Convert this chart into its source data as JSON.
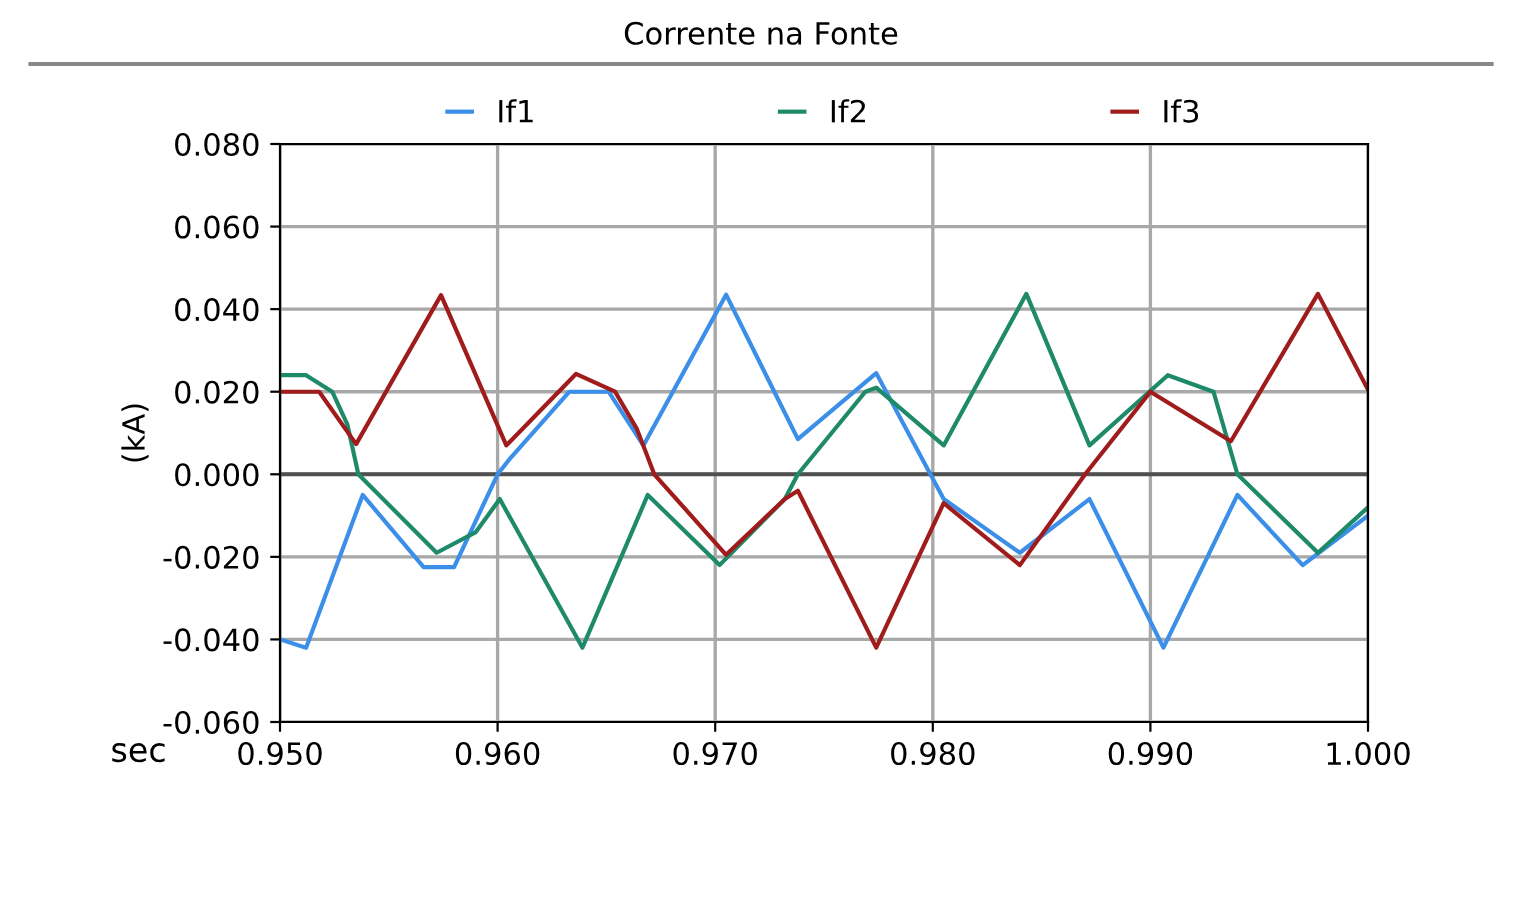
{
  "chart_data": {
    "type": "line",
    "title": "Corrente na Fonte",
    "xlabel": "sec",
    "ylabel": "(kA)",
    "xlim": [
      0.95,
      1.0
    ],
    "xticks": [
      {
        "value": 0.95,
        "label": "0.950"
      },
      {
        "value": 0.96,
        "label": "0.960"
      },
      {
        "value": 0.97,
        "label": "0.970"
      },
      {
        "value": 0.98,
        "label": "0.980"
      },
      {
        "value": 0.99,
        "label": "0.990"
      },
      {
        "value": 1.0,
        "label": "1.000"
      }
    ],
    "ylim": [
      -0.06,
      0.08
    ],
    "yticks": [
      {
        "value": -0.06,
        "label": "-0.060"
      },
      {
        "value": -0.04,
        "label": "-0.040"
      },
      {
        "value": -0.02,
        "label": "-0.020"
      },
      {
        "value": 0,
        "label": "0.000"
      },
      {
        "value": 0.02,
        "label": "0.020"
      },
      {
        "value": 0.04,
        "label": "0.040"
      },
      {
        "value": 0.06,
        "label": "0.060"
      },
      {
        "value": 0.08,
        "label": "0.080"
      }
    ],
    "grid": true,
    "legend": "top",
    "marker": "none",
    "line_style": "solid",
    "ref_lines": [
      {
        "axis": "y",
        "value": 0,
        "color": "#505050"
      }
    ],
    "series": [
      {
        "name": "If1",
        "color": "#3b8fe8",
        "x": [
          0.95,
          0.9512,
          0.9538,
          0.9566,
          0.958,
          0.96,
          0.9606,
          0.9633,
          0.9651,
          0.9667,
          0.9705,
          0.9738,
          0.9774,
          0.9805,
          0.984,
          0.9872,
          0.9906,
          0.994,
          0.997,
          1.0
        ],
        "values": [
          -0.04,
          -0.042,
          -0.005,
          -0.0225,
          -0.0225,
          0.0,
          0.004,
          0.02,
          0.02,
          0.007,
          0.0435,
          0.0085,
          0.0245,
          -0.006,
          -0.019,
          -0.006,
          -0.042,
          -0.005,
          -0.022,
          -0.01
        ]
      },
      {
        "name": "If2",
        "color": "#1f8a6a",
        "x": [
          0.95,
          0.9512,
          0.9524,
          0.9531,
          0.9536,
          0.9572,
          0.959,
          0.9601,
          0.9639,
          0.9669,
          0.9702,
          0.9732,
          0.9738,
          0.9769,
          0.9774,
          0.9805,
          0.9843,
          0.9872,
          0.9908,
          0.9929,
          0.994,
          0.9977,
          1.0
        ],
        "values": [
          0.024,
          0.024,
          0.02,
          0.012,
          0.0,
          -0.019,
          -0.014,
          -0.006,
          -0.042,
          -0.005,
          -0.022,
          -0.006,
          0.0,
          0.02,
          0.021,
          0.007,
          0.0437,
          0.007,
          0.024,
          0.02,
          0.0,
          -0.019,
          -0.008
        ]
      },
      {
        "name": "If3",
        "color": "#a01c1c",
        "x": [
          0.95,
          0.9518,
          0.9535,
          0.9574,
          0.9604,
          0.9636,
          0.9654,
          0.9664,
          0.9672,
          0.9705,
          0.9732,
          0.9738,
          0.9774,
          0.9805,
          0.984,
          0.987,
          0.99,
          0.9937,
          0.9977,
          1.0
        ],
        "values": [
          0.02,
          0.02,
          0.0073,
          0.0434,
          0.007,
          0.0243,
          0.02,
          0.011,
          0.0,
          -0.0195,
          -0.006,
          -0.004,
          -0.042,
          -0.007,
          -0.022,
          0.0,
          0.02,
          0.008,
          0.0437,
          0.0205
        ]
      }
    ]
  }
}
